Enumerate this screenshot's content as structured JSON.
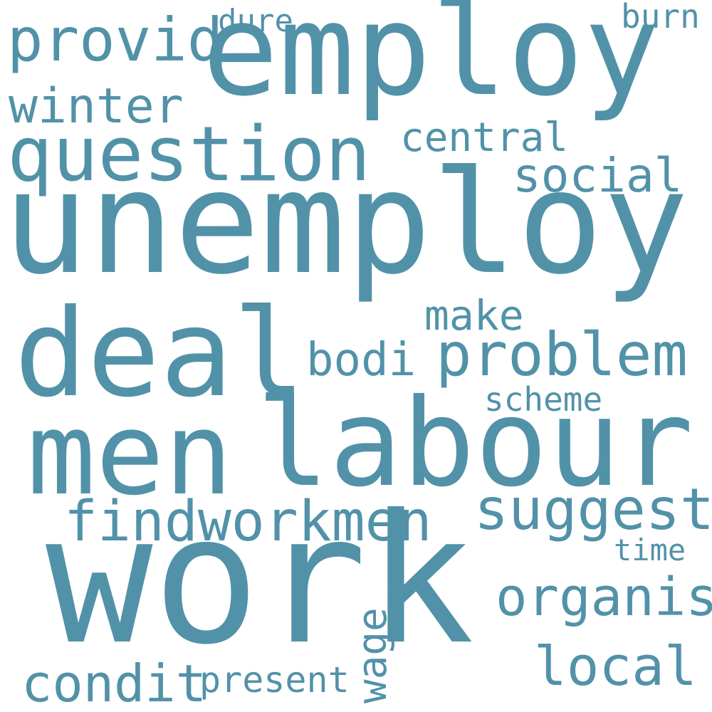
{
  "colors": {
    "word": "#5292a9",
    "background": "#ffffff"
  },
  "words": {
    "unemploy": "unemploy",
    "employ": "employ",
    "work": "work",
    "men": "men",
    "labour": "labour",
    "deal": "deal",
    "question": "question",
    "problem": "problem",
    "findworkmen": "findworkmen",
    "suggest": "suggest",
    "provid": "provid",
    "winter": "winter",
    "organis": "organis",
    "condit": "condit",
    "local": "local",
    "social": "social",
    "central": "central",
    "bodi": "bodi",
    "make": "make",
    "wage": "wage",
    "present": "present",
    "scheme": "scheme",
    "time": "time",
    "dure": "dure",
    "burn": "burn"
  }
}
